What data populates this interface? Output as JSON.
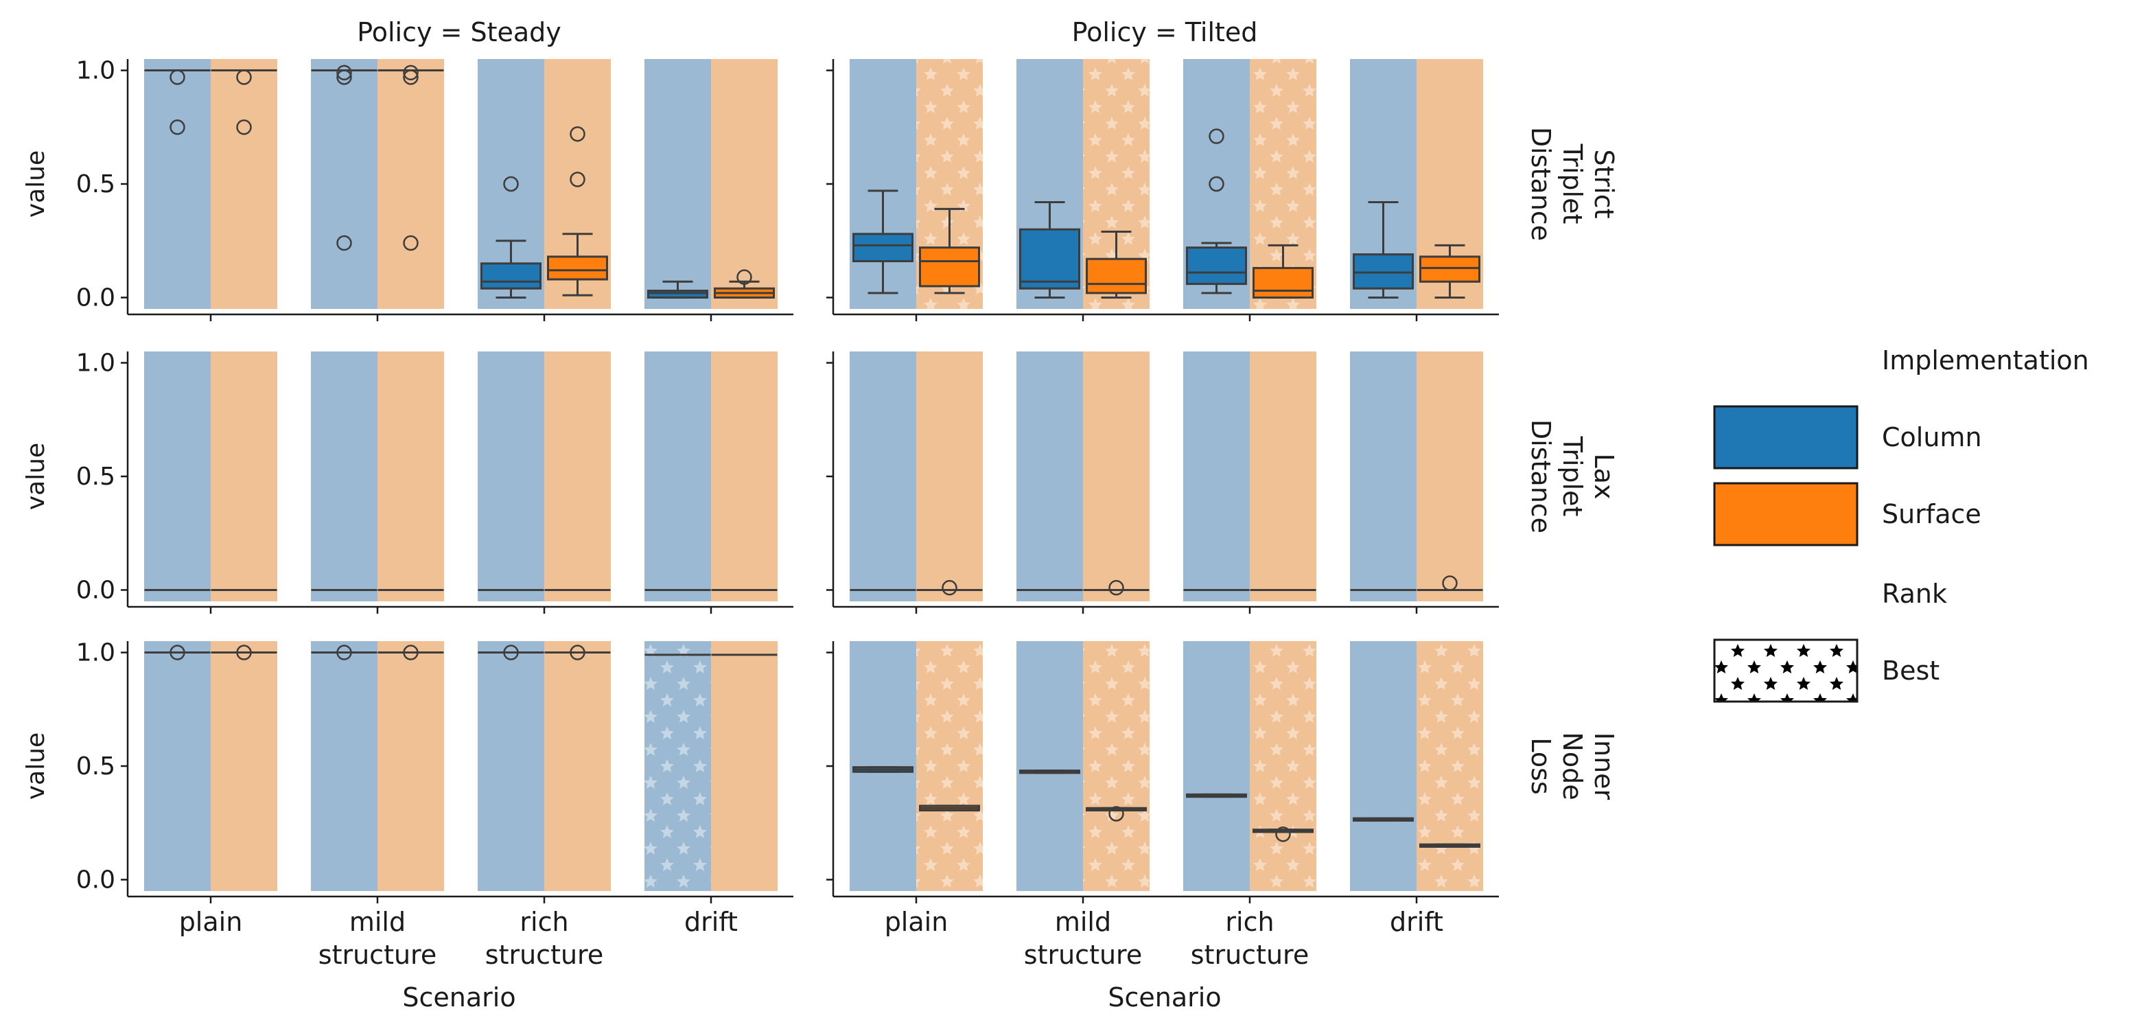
{
  "chart_data": {
    "type": "box",
    "x_label": "Scenario",
    "y_label": "value",
    "categories": [
      "plain",
      "mild\nstructure",
      "rich\nstructure",
      "drift"
    ],
    "ylim": [
      -0.05,
      1.05
    ],
    "yticks": [
      0.0,
      0.5,
      1.0
    ],
    "ytick_labels": [
      "0.0",
      "0.5",
      "1.0"
    ],
    "columns": [
      "Policy = Steady",
      "Policy = Tilted"
    ],
    "rows": [
      "Strict\nTriplet\nDistance",
      "Lax\nTriplet\nDistance",
      "Inner\nNode\nLoss"
    ],
    "series": [
      {
        "name": "Column",
        "color": "#1f77b4",
        "bg_color": "#9bb9d3"
      },
      {
        "name": "Surface",
        "color": "#ff7f0e",
        "bg_color": "#f0c195"
      }
    ],
    "legend": {
      "placement": "right",
      "hue_title": "Implementation",
      "hue_items": [
        "Column",
        "Surface"
      ],
      "rank_title": "Rank",
      "rank_items": [
        "Best"
      ]
    },
    "panels": [
      {
        "row": 0,
        "col": 0,
        "best": [
          null,
          null,
          null,
          null
        ],
        "boxes": [
          [
            {
              "q1": 1.0,
              "med": 1.0,
              "q3": 1.0,
              "wlo": 1.0,
              "whi": 1.0,
              "fliers": [
                0.97,
                0.75
              ]
            },
            {
              "q1": 1.0,
              "med": 1.0,
              "q3": 1.0,
              "wlo": 1.0,
              "whi": 1.0,
              "fliers": [
                0.97,
                0.75
              ]
            }
          ],
          [
            {
              "q1": 1.0,
              "med": 1.0,
              "q3": 1.0,
              "wlo": 1.0,
              "whi": 1.0,
              "fliers": [
                0.99,
                0.97,
                0.24
              ]
            },
            {
              "q1": 1.0,
              "med": 1.0,
              "q3": 1.0,
              "wlo": 1.0,
              "whi": 1.0,
              "fliers": [
                0.99,
                0.97,
                0.24
              ]
            }
          ],
          [
            {
              "q1": 0.04,
              "med": 0.07,
              "q3": 0.15,
              "wlo": 0.0,
              "whi": 0.25,
              "fliers": [
                0.5
              ]
            },
            {
              "q1": 0.08,
              "med": 0.12,
              "q3": 0.18,
              "wlo": 0.01,
              "whi": 0.28,
              "fliers": [
                0.72,
                0.52
              ]
            }
          ],
          [
            {
              "q1": 0.0,
              "med": 0.02,
              "q3": 0.03,
              "wlo": 0.0,
              "whi": 0.07,
              "fliers": []
            },
            {
              "q1": 0.0,
              "med": 0.02,
              "q3": 0.04,
              "wlo": 0.0,
              "whi": 0.07,
              "fliers": [
                0.09
              ]
            }
          ]
        ]
      },
      {
        "row": 0,
        "col": 1,
        "best": [
          1,
          1,
          1,
          null
        ],
        "boxes": [
          [
            {
              "q1": 0.16,
              "med": 0.23,
              "q3": 0.28,
              "wlo": 0.02,
              "whi": 0.47,
              "fliers": []
            },
            {
              "q1": 0.05,
              "med": 0.16,
              "q3": 0.22,
              "wlo": 0.02,
              "whi": 0.39,
              "fliers": []
            }
          ],
          [
            {
              "q1": 0.04,
              "med": 0.07,
              "q3": 0.3,
              "wlo": 0.0,
              "whi": 0.42,
              "fliers": []
            },
            {
              "q1": 0.02,
              "med": 0.06,
              "q3": 0.17,
              "wlo": 0.0,
              "whi": 0.29,
              "fliers": []
            }
          ],
          [
            {
              "q1": 0.06,
              "med": 0.11,
              "q3": 0.22,
              "wlo": 0.02,
              "whi": 0.24,
              "fliers": [
                0.71,
                0.5
              ]
            },
            {
              "q1": 0.0,
              "med": 0.03,
              "q3": 0.13,
              "wlo": 0.0,
              "whi": 0.23,
              "fliers": []
            }
          ],
          [
            {
              "q1": 0.04,
              "med": 0.11,
              "q3": 0.19,
              "wlo": 0.0,
              "whi": 0.42,
              "fliers": []
            },
            {
              "q1": 0.07,
              "med": 0.13,
              "q3": 0.18,
              "wlo": 0.0,
              "whi": 0.23,
              "fliers": []
            }
          ]
        ]
      },
      {
        "row": 1,
        "col": 0,
        "best": [
          null,
          null,
          null,
          null
        ],
        "boxes": [
          [
            {
              "q1": 0.0,
              "med": 0.0,
              "q3": 0.0,
              "wlo": 0.0,
              "whi": 0.0,
              "fliers": []
            },
            {
              "q1": 0.0,
              "med": 0.0,
              "q3": 0.0,
              "wlo": 0.0,
              "whi": 0.0,
              "fliers": []
            }
          ],
          [
            {
              "q1": 0.0,
              "med": 0.0,
              "q3": 0.0,
              "wlo": 0.0,
              "whi": 0.0,
              "fliers": []
            },
            {
              "q1": 0.0,
              "med": 0.0,
              "q3": 0.0,
              "wlo": 0.0,
              "whi": 0.0,
              "fliers": []
            }
          ],
          [
            {
              "q1": 0.0,
              "med": 0.0,
              "q3": 0.0,
              "wlo": 0.0,
              "whi": 0.0,
              "fliers": []
            },
            {
              "q1": 0.0,
              "med": 0.0,
              "q3": 0.0,
              "wlo": 0.0,
              "whi": 0.0,
              "fliers": []
            }
          ],
          [
            {
              "q1": 0.0,
              "med": 0.0,
              "q3": 0.0,
              "wlo": 0.0,
              "whi": 0.0,
              "fliers": []
            },
            {
              "q1": 0.0,
              "med": 0.0,
              "q3": 0.0,
              "wlo": 0.0,
              "whi": 0.0,
              "fliers": []
            }
          ]
        ]
      },
      {
        "row": 1,
        "col": 1,
        "best": [
          null,
          null,
          null,
          null
        ],
        "boxes": [
          [
            {
              "q1": 0.0,
              "med": 0.0,
              "q3": 0.0,
              "wlo": 0.0,
              "whi": 0.0,
              "fliers": []
            },
            {
              "q1": 0.0,
              "med": 0.0,
              "q3": 0.0,
              "wlo": 0.0,
              "whi": 0.0,
              "fliers": [
                0.01
              ]
            }
          ],
          [
            {
              "q1": 0.0,
              "med": 0.0,
              "q3": 0.0,
              "wlo": 0.0,
              "whi": 0.0,
              "fliers": []
            },
            {
              "q1": 0.0,
              "med": 0.0,
              "q3": 0.0,
              "wlo": 0.0,
              "whi": 0.0,
              "fliers": [
                0.01
              ]
            }
          ],
          [
            {
              "q1": 0.0,
              "med": 0.0,
              "q3": 0.0,
              "wlo": 0.0,
              "whi": 0.0,
              "fliers": []
            },
            {
              "q1": 0.0,
              "med": 0.0,
              "q3": 0.0,
              "wlo": 0.0,
              "whi": 0.0,
              "fliers": []
            }
          ],
          [
            {
              "q1": 0.0,
              "med": 0.0,
              "q3": 0.0,
              "wlo": 0.0,
              "whi": 0.0,
              "fliers": []
            },
            {
              "q1": 0.0,
              "med": 0.0,
              "q3": 0.0,
              "wlo": 0.0,
              "whi": 0.0,
              "fliers": [
                0.03
              ]
            }
          ]
        ]
      },
      {
        "row": 2,
        "col": 0,
        "best": [
          null,
          null,
          null,
          0
        ],
        "boxes": [
          [
            {
              "q1": 1.0,
              "med": 1.0,
              "q3": 1.0,
              "wlo": 1.0,
              "whi": 1.0,
              "fliers": [
                1.0
              ]
            },
            {
              "q1": 1.0,
              "med": 1.0,
              "q3": 1.0,
              "wlo": 1.0,
              "whi": 1.0,
              "fliers": [
                1.0
              ]
            }
          ],
          [
            {
              "q1": 1.0,
              "med": 1.0,
              "q3": 1.0,
              "wlo": 1.0,
              "whi": 1.0,
              "fliers": [
                1.0
              ]
            },
            {
              "q1": 1.0,
              "med": 1.0,
              "q3": 1.0,
              "wlo": 1.0,
              "whi": 1.0,
              "fliers": [
                1.0
              ]
            }
          ],
          [
            {
              "q1": 1.0,
              "med": 1.0,
              "q3": 1.0,
              "wlo": 1.0,
              "whi": 1.0,
              "fliers": [
                1.0
              ]
            },
            {
              "q1": 1.0,
              "med": 1.0,
              "q3": 1.0,
              "wlo": 1.0,
              "whi": 1.0,
              "fliers": [
                1.0
              ]
            }
          ],
          [
            {
              "q1": 0.99,
              "med": 0.99,
              "q3": 0.99,
              "wlo": 0.99,
              "whi": 0.99,
              "fliers": []
            },
            {
              "q1": 0.99,
              "med": 0.99,
              "q3": 0.99,
              "wlo": 0.99,
              "whi": 0.99,
              "fliers": []
            }
          ]
        ]
      },
      {
        "row": 2,
        "col": 1,
        "best": [
          1,
          1,
          1,
          1
        ],
        "boxes": [
          [
            {
              "q1": 0.475,
              "med": 0.485,
              "q3": 0.495,
              "wlo": 0.475,
              "whi": 0.495,
              "fliers": []
            },
            {
              "q1": 0.305,
              "med": 0.315,
              "q3": 0.325,
              "wlo": 0.305,
              "whi": 0.325,
              "fliers": []
            }
          ],
          [
            {
              "q1": 0.47,
              "med": 0.475,
              "q3": 0.48,
              "wlo": 0.47,
              "whi": 0.48,
              "fliers": []
            },
            {
              "q1": 0.305,
              "med": 0.31,
              "q3": 0.315,
              "wlo": 0.305,
              "whi": 0.315,
              "fliers": [
                0.29
              ]
            }
          ],
          [
            {
              "q1": 0.365,
              "med": 0.37,
              "q3": 0.375,
              "wlo": 0.365,
              "whi": 0.375,
              "fliers": []
            },
            {
              "q1": 0.21,
              "med": 0.215,
              "q3": 0.22,
              "wlo": 0.21,
              "whi": 0.22,
              "fliers": [
                0.2
              ]
            }
          ],
          [
            {
              "q1": 0.26,
              "med": 0.265,
              "q3": 0.27,
              "wlo": 0.26,
              "whi": 0.27,
              "fliers": []
            },
            {
              "q1": 0.145,
              "med": 0.15,
              "q3": 0.155,
              "wlo": 0.145,
              "whi": 0.155,
              "fliers": []
            }
          ]
        ]
      }
    ]
  }
}
